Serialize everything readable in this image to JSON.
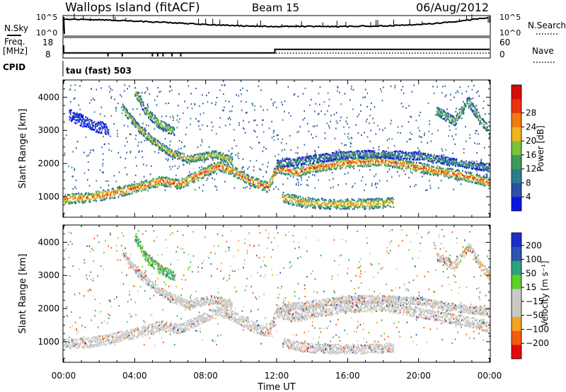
{
  "header": {
    "station": "Wallops Island (fitACF)",
    "beam": "Beam 15",
    "date": "06/Aug/2012"
  },
  "noise_panel": {
    "left_label": "N.Sky",
    "right_label": "N.Search",
    "left_ticks": [
      "10^5",
      "10^0"
    ],
    "right_ticks": [
      "10^5",
      "10^0"
    ]
  },
  "freq_panel": {
    "left_label_line1": "Freq.",
    "left_label_line2": "[MHz]",
    "right_label": "Nave",
    "left_ticks": [
      "18",
      "8"
    ],
    "right_ticks": [
      "60",
      "0"
    ]
  },
  "cpid": {
    "label": "CPID",
    "mode": "tau (fast) 503"
  },
  "colors": {
    "power_scale": [
      "#0a14e6",
      "#2c4fa8",
      "#2f7a8a",
      "#3f9a5a",
      "#7cc23a",
      "#f2b21c",
      "#f07a10",
      "#e8340e",
      "#d70a0a"
    ],
    "velocity_scale": [
      "#e30b0b",
      "#f35a0c",
      "#f4a21e",
      "#c8c8c0",
      "#c9c9c9",
      "#5fcf2a",
      "#2fa07a",
      "#2d55b0",
      "#1b2fc9"
    ]
  },
  "chart_data": [
    {
      "type": "heatmap",
      "panel": "power",
      "xlabel": "Time UT",
      "ylabel": "Slant Range [km]",
      "x_ticks": [
        "00:00",
        "04:00",
        "08:00",
        "12:00",
        "16:00",
        "20:00",
        "00:00"
      ],
      "x_range_hours": [
        0,
        24
      ],
      "y_ticks": [
        1000,
        2000,
        3000,
        4000
      ],
      "ylim": [
        400,
        4500
      ],
      "colorbar_label": "Power [dB]",
      "colorbar_ticks": [
        4,
        8,
        12,
        16,
        20,
        24,
        28
      ],
      "bands": [
        {
          "points": [
            [
              0.0,
              950
            ],
            [
              1.5,
              1000
            ],
            [
              3.0,
              1150
            ],
            [
              4.5,
              1350
            ],
            [
              5.5,
              1500
            ],
            [
              6.5,
              1400
            ],
            [
              7.5,
              1650
            ],
            [
              8.7,
              1950
            ],
            [
              9.5,
              1800
            ],
            [
              10.5,
              1500
            ],
            [
              11.5,
              1300
            ],
            [
              12.0,
              1900
            ],
            [
              13.0,
              1750
            ],
            [
              14.0,
              1900
            ],
            [
              16.0,
              2050
            ],
            [
              18.0,
              2100
            ],
            [
              20.0,
              1900
            ],
            [
              22.0,
              1700
            ],
            [
              23.0,
              1600
            ],
            [
              24.0,
              1450
            ]
          ],
          "width": 250,
          "power": 26
        },
        {
          "points": [
            [
              12.3,
              1000
            ],
            [
              13.5,
              850
            ],
            [
              15.0,
              800
            ],
            [
              17.0,
              800
            ],
            [
              18.6,
              850
            ]
          ],
          "width": 260,
          "power": 22
        },
        {
          "points": [
            [
              12.0,
              2000
            ],
            [
              14.0,
              2150
            ],
            [
              16.0,
              2300
            ],
            [
              18.0,
              2300
            ],
            [
              20.0,
              2250
            ],
            [
              22.0,
              2050
            ],
            [
              24.0,
              1900
            ]
          ],
          "width": 200,
          "power": 12
        },
        {
          "points": [
            [
              3.3,
              3700
            ],
            [
              4.1,
              3150
            ],
            [
              5.0,
              2700
            ],
            [
              6.0,
              2350
            ],
            [
              7.0,
              2150
            ],
            [
              8.5,
              2300
            ],
            [
              9.5,
              2100
            ]
          ],
          "width": 200,
          "power": 20
        },
        {
          "points": [
            [
              4.0,
              4200
            ],
            [
              4.6,
              3600
            ],
            [
              5.4,
              3200
            ],
            [
              6.2,
              3000
            ]
          ],
          "width": 220,
          "power": 18
        },
        {
          "points": [
            [
              21.0,
              3600
            ],
            [
              22.0,
              3300
            ],
            [
              22.8,
              3900
            ],
            [
              23.5,
              3300
            ],
            [
              24.0,
              3000
            ]
          ],
          "width": 240,
          "power": 16
        },
        {
          "points": [
            [
              0.3,
              3500
            ],
            [
              1.5,
              3200
            ],
            [
              2.5,
              3050
            ]
          ],
          "width": 300,
          "power": 6
        }
      ]
    },
    {
      "type": "heatmap",
      "panel": "velocity",
      "xlabel": "Time UT",
      "ylabel": "Slant Range [km]",
      "x_ticks": [
        "00:00",
        "04:00",
        "08:00",
        "12:00",
        "16:00",
        "20:00",
        "00:00"
      ],
      "x_range_hours": [
        0,
        24
      ],
      "y_ticks": [
        1000,
        2000,
        3000,
        4000
      ],
      "ylim": [
        400,
        4500
      ],
      "colorbar_label": "Velocity [m s⁻¹]",
      "colorbar_ticks": [
        200,
        100,
        50,
        15,
        -15,
        -50,
        -100,
        -200
      ],
      "bands": [
        {
          "points": [
            [
              0.0,
              950
            ],
            [
              1.5,
              1000
            ],
            [
              3.0,
              1150
            ],
            [
              4.5,
              1350
            ],
            [
              5.5,
              1500
            ],
            [
              6.5,
              1400
            ],
            [
              7.5,
              1650
            ],
            [
              8.7,
              1950
            ],
            [
              9.5,
              1800
            ],
            [
              10.5,
              1500
            ],
            [
              11.5,
              1300
            ],
            [
              12.0,
              1900
            ],
            [
              13.0,
              1750
            ],
            [
              14.0,
              1900
            ],
            [
              16.0,
              2050
            ],
            [
              18.0,
              2100
            ],
            [
              20.0,
              1900
            ],
            [
              22.0,
              1700
            ],
            [
              23.0,
              1600
            ],
            [
              24.0,
              1450
            ]
          ],
          "width": 260,
          "velocity": 0
        },
        {
          "points": [
            [
              12.3,
              1000
            ],
            [
              13.5,
              850
            ],
            [
              15.0,
              800
            ],
            [
              17.0,
              800
            ],
            [
              18.6,
              850
            ]
          ],
          "width": 240,
          "velocity": -5
        },
        {
          "points": [
            [
              12.0,
              2000
            ],
            [
              14.0,
              2150
            ],
            [
              16.0,
              2300
            ],
            [
              18.0,
              2300
            ],
            [
              20.0,
              2250
            ],
            [
              22.0,
              2050
            ],
            [
              24.0,
              1900
            ]
          ],
          "width": 200,
          "velocity": 0
        },
        {
          "points": [
            [
              3.3,
              3700
            ],
            [
              4.1,
              3150
            ],
            [
              5.0,
              2700
            ],
            [
              6.0,
              2350
            ],
            [
              7.0,
              2150
            ],
            [
              8.5,
              2300
            ],
            [
              9.5,
              2100
            ]
          ],
          "width": 220,
          "velocity": 5
        },
        {
          "points": [
            [
              4.0,
              4200
            ],
            [
              4.6,
              3600
            ],
            [
              5.4,
              3200
            ],
            [
              6.2,
              3000
            ]
          ],
          "width": 240,
          "velocity": 30
        },
        {
          "points": [
            [
              21.0,
              3600
            ],
            [
              22.0,
              3300
            ],
            [
              22.8,
              3900
            ],
            [
              23.5,
              3300
            ],
            [
              24.0,
              3000
            ]
          ],
          "width": 220,
          "velocity": -10
        }
      ]
    },
    {
      "type": "line",
      "panel": "noise",
      "series": [
        {
          "name": "N.Sky",
          "x": [
            0,
            2,
            4,
            6,
            8,
            10,
            12,
            14,
            16,
            18,
            20,
            22,
            24
          ],
          "y": [
            0.78,
            0.72,
            0.62,
            0.5,
            0.35,
            0.25,
            0.2,
            0.2,
            0.2,
            0.25,
            0.35,
            0.55,
            0.9
          ]
        }
      ]
    },
    {
      "type": "line",
      "panel": "frequency",
      "series": [
        {
          "name": "Freq.",
          "x": [
            0,
            11.9,
            11.9,
            24
          ],
          "y": [
            10.5,
            10.5,
            13.5,
            13.5
          ]
        }
      ]
    }
  ]
}
